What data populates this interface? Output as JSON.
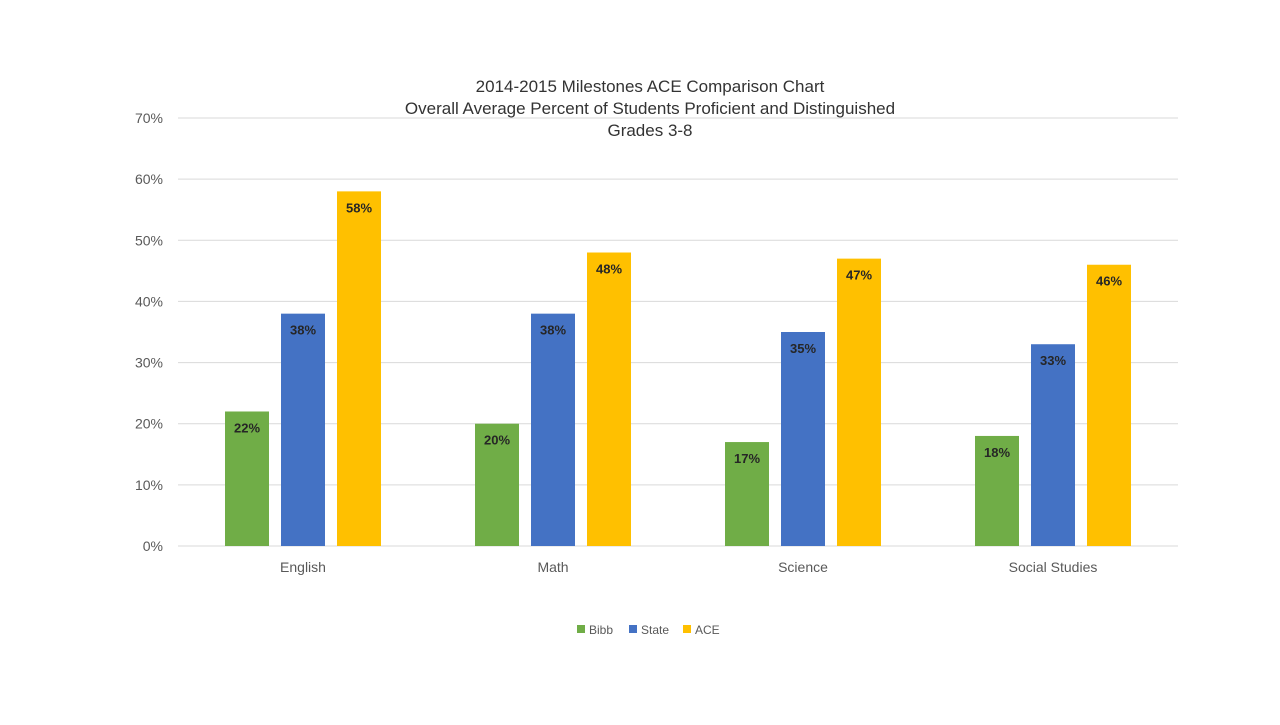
{
  "colors": {
    "Bibb": "#70AD47",
    "State": "#4472C4",
    "ACE": "#FFC000",
    "grid": "#D9D9D9",
    "text": "#595959",
    "label": "#262626"
  },
  "chart_data": {
    "type": "bar",
    "title_lines": [
      "2014-2015 Milestones ACE Comparison Chart",
      "Overall Average Percent of Students Proficient and Distinguished",
      "Grades 3-8"
    ],
    "categories": [
      "English",
      "Math",
      "Science",
      "Social Studies"
    ],
    "series": [
      {
        "name": "Bibb",
        "values": [
          22,
          20,
          17,
          18
        ],
        "labels": [
          "22%",
          "20%",
          "17%",
          "18%"
        ]
      },
      {
        "name": "State",
        "values": [
          38,
          38,
          35,
          33
        ],
        "labels": [
          "38%",
          "38%",
          "35%",
          "33%"
        ]
      },
      {
        "name": "ACE",
        "values": [
          58,
          48,
          47,
          46
        ],
        "labels": [
          "58%",
          "48%",
          "47%",
          "46%"
        ]
      }
    ],
    "ylim": [
      0,
      70
    ],
    "yticks": [
      0,
      10,
      20,
      30,
      40,
      50,
      60,
      70
    ],
    "ytick_labels": [
      "0%",
      "10%",
      "20%",
      "30%",
      "40%",
      "50%",
      "60%",
      "70%"
    ],
    "grid": true,
    "legend_position": "bottom",
    "xlabel": "",
    "ylabel": ""
  }
}
